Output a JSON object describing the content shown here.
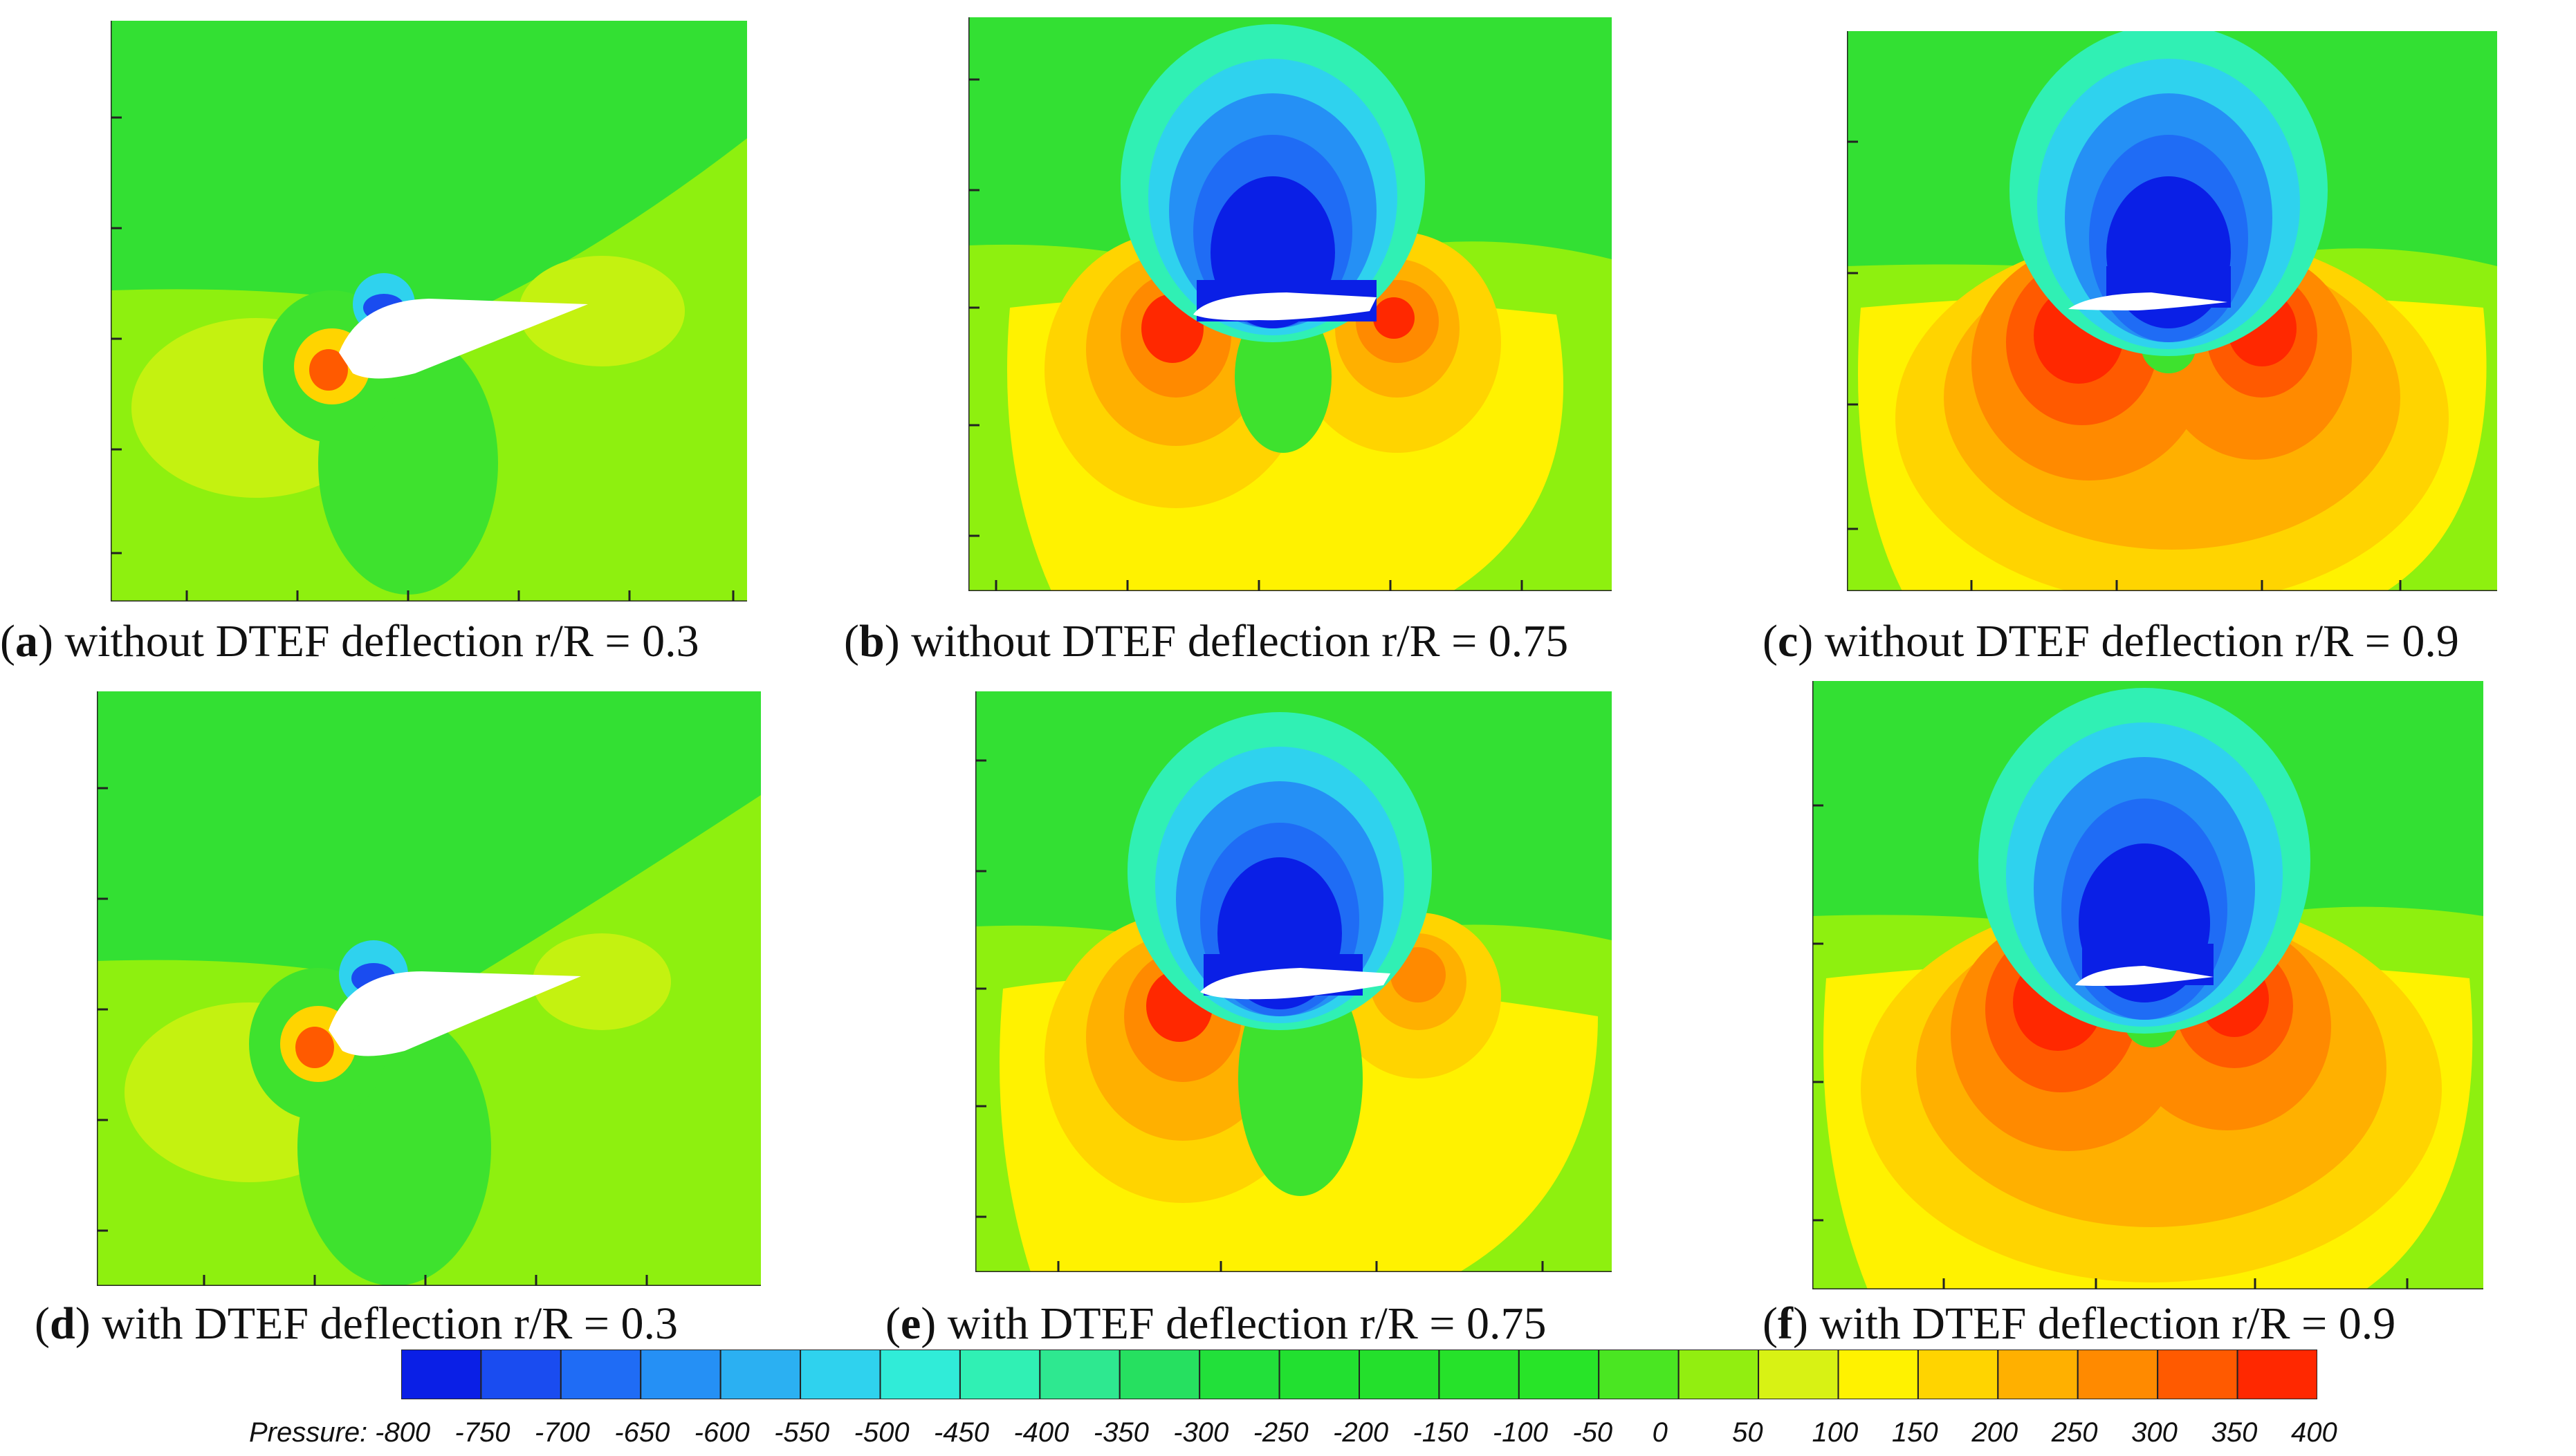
{
  "figure": {
    "panels": [
      {
        "id": "a",
        "letter": "a",
        "text": "without DTEF deflection r/R = 0.3"
      },
      {
        "id": "b",
        "letter": "b",
        "text": "without DTEF deflection r/R = 0.75"
      },
      {
        "id": "c",
        "letter": "c",
        "text": "without DTEF deflection r/R = 0.9"
      },
      {
        "id": "d",
        "letter": "d",
        "text": "with DTEF deflection r/R = 0.3"
      },
      {
        "id": "e",
        "letter": "e",
        "text": "with DTEF deflection r/R = 0.75"
      },
      {
        "id": "f",
        "letter": "f",
        "text": "with DTEF deflection r/R = 0.9"
      }
    ],
    "colorbar": {
      "title": "Pressure:",
      "ticks": [
        "-800",
        "-750",
        "-700",
        "-650",
        "-600",
        "-550",
        "-500",
        "-450",
        "-400",
        "-350",
        "-300",
        "-250",
        "-200",
        "-150",
        "-100",
        "-50",
        "0",
        "50",
        "100",
        "150",
        "200",
        "250",
        "300",
        "350",
        "400"
      ],
      "colors": [
        "#0a1fe6",
        "#1a4cf0",
        "#1f6cf5",
        "#2590f5",
        "#2bb0f2",
        "#2fd2ee",
        "#30ecd8",
        "#30f0b4",
        "#2ee890",
        "#26e060",
        "#22e03a",
        "#22e030",
        "#24e02c",
        "#26e22a",
        "#28e428",
        "#4ae622",
        "#92ee10",
        "#d8f214",
        "#fff200",
        "#ffd400",
        "#ffb000",
        "#ff8a00",
        "#ff5a00",
        "#ff2800"
      ]
    },
    "colors": {
      "background_field": "#33e033",
      "far_field": "#8ef00f",
      "strong_suction": "#0a1fe6",
      "strong_pressure": "#ff1e1e"
    }
  }
}
